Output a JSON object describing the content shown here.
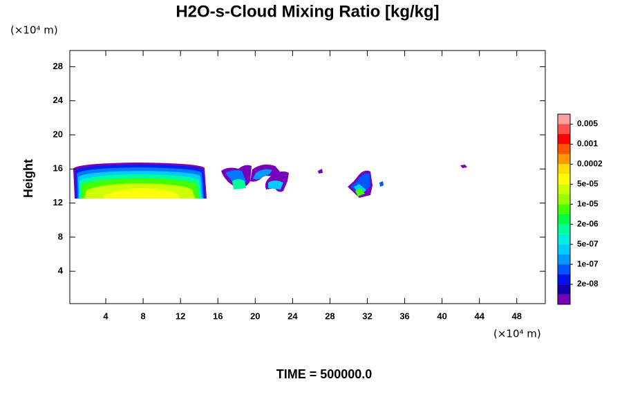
{
  "chart_data": {
    "type": "contour",
    "title": "H2O-s-Cloud Mixing Ratio [kg/kg]",
    "y_unit": "(×10⁴ m)",
    "x_unit": "(×10⁴ m)",
    "ylabel": "Height",
    "footer": "TIME = 500000.0",
    "xlim": [
      0.15,
      51.05
    ],
    "ylim": [
      0.2,
      29.9
    ],
    "xticks": [
      4,
      8,
      12,
      16,
      20,
      24,
      28,
      32,
      36,
      40,
      44,
      48
    ],
    "yticks": [
      4,
      8,
      12,
      16,
      20,
      24,
      28
    ],
    "colorbar": {
      "colors": [
        "#ff9f9f",
        "#ff5050",
        "#ff0000",
        "#ff5500",
        "#ff9900",
        "#ffdd00",
        "#ffff00",
        "#ccff00",
        "#99ff00",
        "#44ff00",
        "#00ff44",
        "#00ff99",
        "#00eedd",
        "#00ccff",
        "#0099ff",
        "#0055ff",
        "#0011ee",
        "#1100aa",
        "#7700bb"
      ],
      "ticks": [
        0.005,
        0.001,
        0.0002,
        {
          "value": 5e-05,
          "label": "5e-05"
        },
        {
          "value": 1e-05,
          "label": "1e-05"
        },
        {
          "value": 2e-06,
          "label": "2e-06"
        },
        {
          "value": 5e-07,
          "label": "5e-07"
        },
        {
          "value": 1e-07,
          "label": "1e-07"
        },
        {
          "value": 2e-08,
          "label": "2e-08"
        }
      ]
    }
  }
}
